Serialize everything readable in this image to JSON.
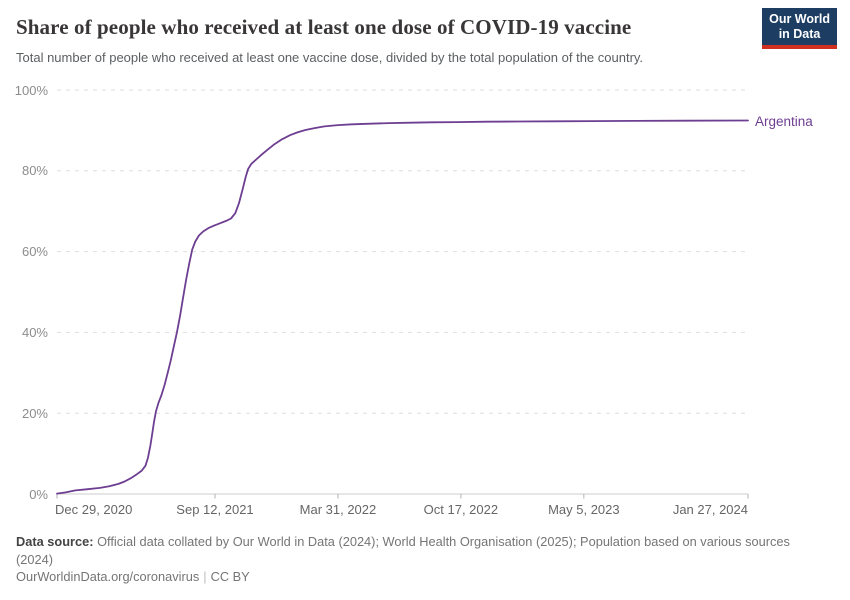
{
  "header": {
    "title": "Share of people who received at least one dose of COVID-19 vaccine",
    "subtitle": "Total number of people who received at least one vaccine dose, divided by the total population of the country.",
    "logo": {
      "line1": "Our World",
      "line2": "in Data",
      "bg_color": "#1d3d63",
      "accent_color": "#cf3020"
    }
  },
  "chart_data": {
    "type": "line",
    "title": "Share of people who received at least one dose of COVID-19 vaccine",
    "subtitle": "Total number of people who received at least one vaccine dose, divided by the total population of the country.",
    "xlabel": "",
    "ylabel": "",
    "grid": true,
    "legend_position": "end-of-line-label",
    "ylim": [
      0,
      100
    ],
    "yticks": [
      {
        "label": "100%",
        "value": 100
      },
      {
        "label": "80%",
        "value": 80
      },
      {
        "label": "60%",
        "value": 60
      },
      {
        "label": "40%",
        "value": 40
      },
      {
        "label": "20%",
        "value": 20
      },
      {
        "label": "0%",
        "value": 0
      }
    ],
    "x_axis_unit": "days since Dec 29, 2020",
    "x_max_day": 1124,
    "xticks": [
      {
        "label": "Dec 29, 2020",
        "day": 0,
        "align": "start"
      },
      {
        "label": "Sep 12, 2021",
        "day": 257,
        "align": "center"
      },
      {
        "label": "Mar 31, 2022",
        "day": 457,
        "align": "center"
      },
      {
        "label": "Oct 17, 2022",
        "day": 657,
        "align": "center"
      },
      {
        "label": "May 5, 2023",
        "day": 857,
        "align": "center"
      },
      {
        "label": "Jan 27, 2024",
        "day": 1124,
        "align": "end"
      }
    ],
    "series": [
      {
        "name": "Argentina",
        "color": "#6D3E91",
        "points": [
          [
            0,
            0.1
          ],
          [
            14,
            0.4
          ],
          [
            30,
            0.9
          ],
          [
            50,
            1.2
          ],
          [
            70,
            1.5
          ],
          [
            85,
            1.9
          ],
          [
            100,
            2.5
          ],
          [
            110,
            3.1
          ],
          [
            120,
            3.9
          ],
          [
            130,
            4.9
          ],
          [
            138,
            5.8
          ],
          [
            144,
            7
          ],
          [
            148,
            9
          ],
          [
            152,
            12
          ],
          [
            155,
            15
          ],
          [
            158,
            18
          ],
          [
            161,
            20.5
          ],
          [
            165,
            22.5
          ],
          [
            170,
            24.5
          ],
          [
            175,
            27
          ],
          [
            180,
            30
          ],
          [
            185,
            33
          ],
          [
            190,
            36.5
          ],
          [
            195,
            40
          ],
          [
            200,
            44
          ],
          [
            205,
            48.5
          ],
          [
            210,
            53
          ],
          [
            215,
            57
          ],
          [
            220,
            60.5
          ],
          [
            225,
            62.5
          ],
          [
            231,
            64
          ],
          [
            238,
            65
          ],
          [
            246,
            65.8
          ],
          [
            255,
            66.4
          ],
          [
            265,
            67
          ],
          [
            275,
            67.6
          ],
          [
            283,
            68.2
          ],
          [
            290,
            69.5
          ],
          [
            296,
            72
          ],
          [
            302,
            75.5
          ],
          [
            307,
            78.5
          ],
          [
            311,
            80.5
          ],
          [
            316,
            81.7
          ],
          [
            324,
            82.8
          ],
          [
            333,
            84
          ],
          [
            343,
            85.3
          ],
          [
            354,
            86.6
          ],
          [
            366,
            87.8
          ],
          [
            379,
            88.8
          ],
          [
            391,
            89.5
          ],
          [
            404,
            90.1
          ],
          [
            420,
            90.6
          ],
          [
            435,
            91
          ],
          [
            457,
            91.3
          ],
          [
            480,
            91.5
          ],
          [
            510,
            91.65
          ],
          [
            540,
            91.8
          ],
          [
            575,
            91.9
          ],
          [
            610,
            92
          ],
          [
            650,
            92.05
          ],
          [
            700,
            92.15
          ],
          [
            750,
            92.2
          ],
          [
            810,
            92.25
          ],
          [
            870,
            92.3
          ],
          [
            940,
            92.35
          ],
          [
            1020,
            92.4
          ],
          [
            1124,
            92.45
          ]
        ]
      }
    ]
  },
  "footer": {
    "source_label": "Data source:",
    "source_text": " Official data collated by Our World in Data (2024); World Health Organisation (2025); Population based on various sources (2024)",
    "citation_link": "OurWorldinData.org/coronavirus",
    "license": "CC BY"
  }
}
